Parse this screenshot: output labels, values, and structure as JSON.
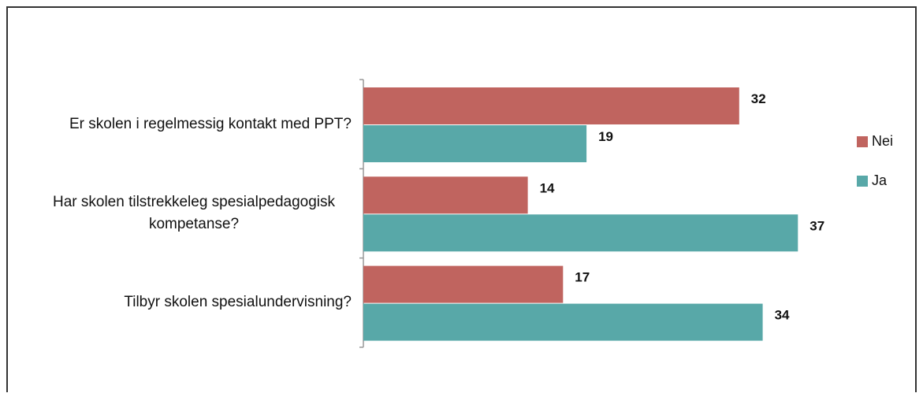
{
  "chart_data": {
    "type": "bar",
    "orientation": "horizontal",
    "categories": [
      "Er skolen i regelmessig kontakt med PPT?",
      "Har skolen tilstrekkeleg spesialpedagogisk kompetanse?",
      "Tilbyr skolen spesialundervisning?"
    ],
    "series": [
      {
        "name": "Nei",
        "color": "#c0645f",
        "values": [
          32,
          14,
          17
        ]
      },
      {
        "name": "Ja",
        "color": "#58a8a8",
        "values": [
          19,
          37,
          34
        ]
      }
    ],
    "legend": "right"
  }
}
